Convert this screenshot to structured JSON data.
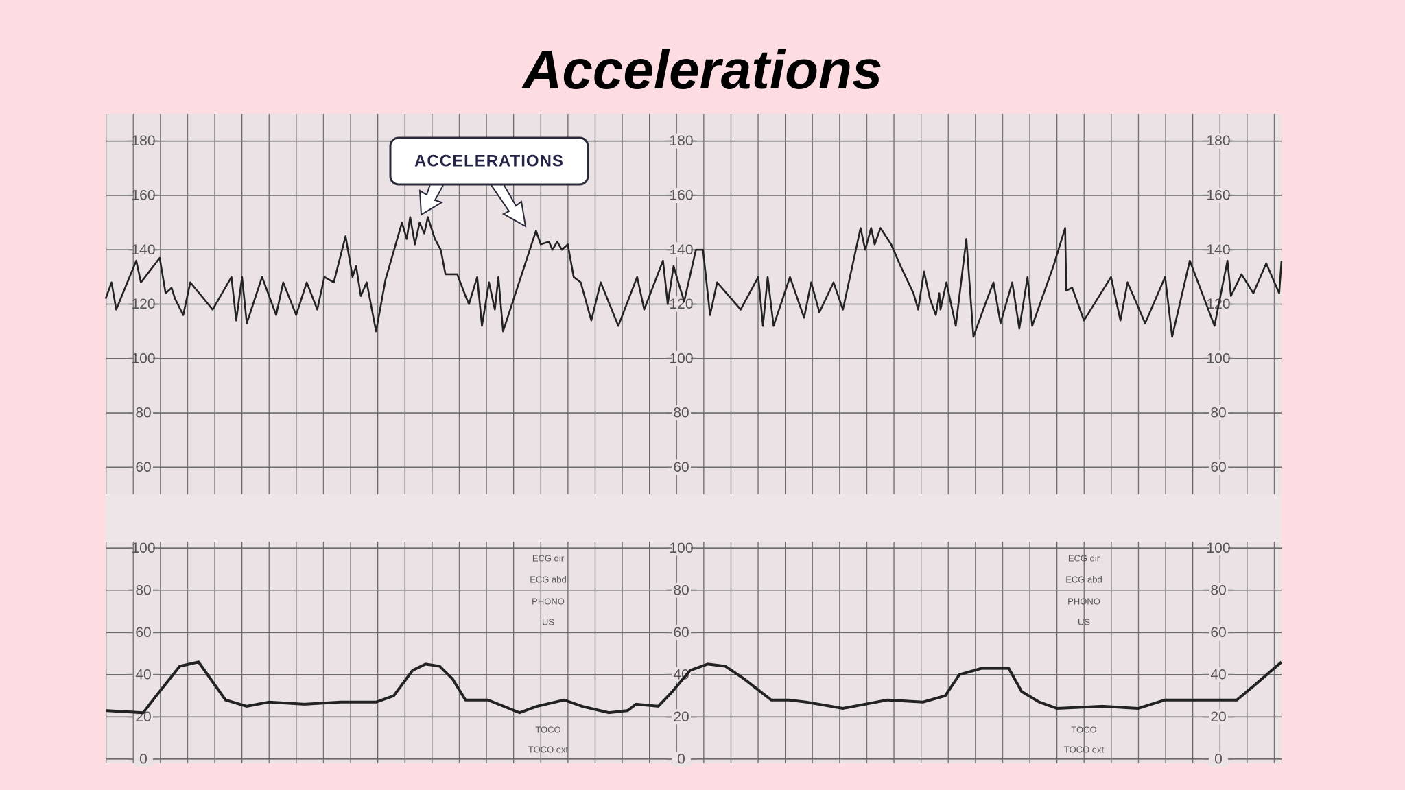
{
  "title": "Accelerations",
  "callout": "ACCELERATIONS",
  "channel_labels": [
    "ECG dir",
    "ECG abd",
    "PHONO",
    "US"
  ],
  "toco_labels": [
    "TOCO",
    "TOCO ext"
  ],
  "chart_data": [
    {
      "type": "line",
      "color": "#222222",
      "xlim": [
        0,
        100
      ],
      "ylim": [
        50,
        190
      ],
      "yticks": [
        60,
        80,
        100,
        120,
        140,
        160,
        180
      ],
      "x": [
        0,
        0.5,
        0.9,
        2.6,
        3.0,
        4.6,
        5.1,
        5.6,
        5.9,
        6.6,
        7.2,
        9.1,
        10.7,
        11.1,
        11.6,
        12.0,
        13.3,
        14.5,
        15.1,
        16.2,
        17.1,
        18.0,
        18.6,
        19.4,
        20.4,
        21.0,
        21.3,
        21.7,
        22.2,
        23.0,
        23.8,
        25.2,
        25.6,
        25.9,
        26.3,
        26.7,
        27.1,
        27.4,
        28.0,
        28.5,
        28.9,
        29.9,
        30.6,
        30.9,
        31.6,
        32.0,
        32.6,
        33.1,
        33.4,
        33.8,
        36.6,
        37.0,
        37.7,
        38.0,
        38.4,
        38.8,
        39.3,
        39.8,
        40.4,
        41.3,
        42.1,
        43.6,
        45.2,
        45.8,
        47.4,
        47.8,
        48.3,
        48.7,
        49.2,
        50.2,
        50.8,
        51.4,
        52.0,
        54.0,
        55.5,
        55.9,
        56.3,
        56.8,
        58.2,
        59.4,
        60.0,
        60.7,
        61.9,
        62.7,
        64.2,
        64.6,
        65.1,
        65.4,
        65.9,
        66.5,
        66.8,
        67.6,
        68.7,
        69.1,
        69.6,
        70.1,
        70.6,
        70.9,
        71.0,
        71.5,
        72.3,
        73.2,
        73.8,
        74.8,
        75.5,
        76.1,
        77.1,
        77.7,
        78.4,
        78.8,
        80.6,
        81.6,
        81.7,
        82.2,
        83.2,
        85.5,
        86.3,
        86.9,
        88.4,
        90.1,
        90.7,
        92.2,
        94.3,
        95.4,
        95.7,
        96.6,
        97.6,
        98.7,
        99.8,
        100
      ],
      "values": [
        122,
        128,
        118,
        136,
        128,
        137,
        124,
        126,
        122,
        116,
        128,
        118,
        130,
        114,
        130,
        113,
        130,
        116,
        128,
        116,
        128,
        118,
        130,
        128,
        145,
        130,
        134,
        123,
        128,
        110,
        129,
        150,
        144,
        152,
        142,
        150,
        146,
        152,
        144,
        140,
        131,
        131,
        123,
        120,
        130,
        112,
        128,
        118,
        130,
        110,
        147,
        142,
        143,
        140,
        143,
        140,
        142,
        130,
        128,
        114,
        128,
        112,
        130,
        118,
        136,
        120,
        134,
        128,
        121,
        140,
        140,
        116,
        128,
        118,
        130,
        112,
        130,
        112,
        130,
        115,
        128,
        117,
        128,
        118,
        148,
        140,
        148,
        142,
        148,
        144,
        142,
        134,
        124,
        118,
        132,
        122,
        116,
        124,
        118,
        128,
        112,
        144,
        108,
        120,
        128,
        113,
        128,
        111,
        130,
        112,
        134,
        148,
        125,
        126,
        114,
        130,
        114,
        128,
        113,
        130,
        108,
        136,
        112,
        136,
        123,
        131,
        124,
        135,
        124,
        136
      ]
    },
    {
      "type": "line",
      "color": "#222222",
      "xlim": [
        0,
        100
      ],
      "ylim": [
        -2,
        103
      ],
      "yticks": [
        0,
        20,
        40,
        60,
        80,
        100
      ],
      "x": [
        0,
        3.2,
        4.3,
        6.3,
        7.9,
        9.3,
        10.2,
        12.0,
        13.9,
        16.9,
        20.0,
        23.0,
        24.5,
        26.1,
        27.2,
        28.4,
        29.5,
        30.6,
        32.5,
        35.2,
        36.7,
        39.0,
        40.5,
        42.8,
        44.4,
        45.1,
        47.0,
        48.2,
        49.7,
        51.2,
        52.7,
        54.3,
        56.6,
        58.1,
        59.6,
        62.7,
        66.5,
        69.5,
        71.4,
        72.6,
        74.5,
        76.8,
        77.9,
        79.4,
        80.9,
        84.8,
        87.8,
        90.1,
        96.2,
        97.7,
        100
      ],
      "values": [
        23,
        22,
        30,
        44,
        46,
        35,
        28,
        25,
        27,
        26,
        27,
        27,
        30,
        42,
        45,
        44,
        38,
        28,
        28,
        22,
        25,
        28,
        25,
        22,
        23,
        26,
        25,
        32,
        42,
        45,
        44,
        38,
        28,
        28,
        27,
        24,
        28,
        27,
        30,
        40,
        43,
        43,
        32,
        27,
        24,
        25,
        24,
        28,
        28,
        35,
        46
      ]
    }
  ]
}
